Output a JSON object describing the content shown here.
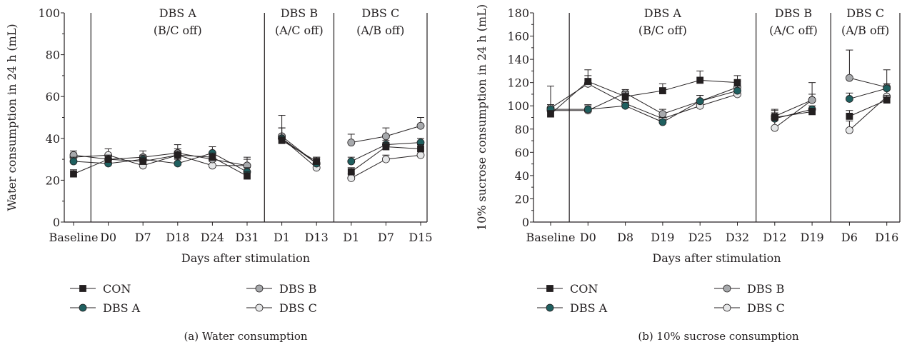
{
  "legend_labels": [
    "CON",
    "DBS A",
    "DBS B",
    "DBS C"
  ],
  "series_colors": {
    "CON": "#231f20",
    "DBS A": "#1f5f5f",
    "DBS B": "#a7a9ac",
    "DBS C": "#e6e7e8"
  },
  "markers": {
    "CON": "square",
    "DBS A": "circle",
    "DBS B": "circle",
    "DBS C": "circle"
  },
  "chart_data": [
    {
      "type": "line",
      "caption": "(a)  Water consumption",
      "xlabel": "Days after stimulation",
      "ylabel": "Water consumption in 24 h (mL)",
      "ylim": [
        0,
        100
      ],
      "yticks": [
        0,
        20,
        40,
        60,
        80,
        100
      ],
      "categories": [
        "Baseline",
        "D0",
        "D7",
        "D18",
        "D24",
        "D31",
        "D1",
        "D13",
        "D1",
        "D7",
        "D15"
      ],
      "phases": [
        {
          "line1": "DBS A",
          "line2": "(B/C off)",
          "from_index": 1,
          "to_index": 5
        },
        {
          "line1": "DBS B",
          "line2": "(A/C off)",
          "from_index": 6,
          "to_index": 7
        },
        {
          "line1": "DBS C",
          "line2": "(A/B off)",
          "from_index": 8,
          "to_index": 10
        }
      ],
      "series": [
        {
          "name": "CON",
          "values": [
            23,
            30,
            29,
            32,
            31,
            22,
            39,
            29,
            24,
            36,
            35
          ],
          "errors": [
            2,
            2,
            2,
            2,
            2,
            2,
            2,
            2,
            2,
            2,
            2
          ]
        },
        {
          "name": "DBS A",
          "values": [
            29,
            28,
            30,
            28,
            33,
            24,
            40,
            28,
            29,
            37,
            38
          ],
          "errors": [
            2,
            2,
            2,
            2,
            3,
            2,
            5,
            2,
            2,
            2,
            2
          ]
        },
        {
          "name": "DBS B",
          "values": [
            32,
            30,
            31,
            33,
            30,
            27,
            41,
            28,
            38,
            41,
            46
          ],
          "errors": [
            2,
            2,
            3,
            4,
            3,
            4,
            10,
            3,
            4,
            4,
            4
          ]
        },
        {
          "name": "DBS C",
          "values": [
            31,
            32,
            27,
            32,
            27,
            27,
            40,
            26,
            21,
            30,
            32
          ],
          "errors": [
            2,
            3,
            2,
            3,
            2,
            3,
            5,
            2,
            2,
            2,
            2
          ]
        }
      ]
    },
    {
      "type": "line",
      "caption": "(b)  10% sucrose consumption",
      "xlabel": "Days after stimulation",
      "ylabel": "10% sucrose consumption in 24 h (mL)",
      "ylim": [
        0,
        180
      ],
      "yticks": [
        0,
        20,
        40,
        60,
        80,
        100,
        120,
        140,
        160,
        180
      ],
      "categories": [
        "Baseline",
        "D0",
        "D8",
        "D19",
        "D25",
        "D32",
        "D12",
        "D19",
        "D6",
        "D16"
      ],
      "phases": [
        {
          "line1": "DBS A",
          "line2": "(B/C off)",
          "from_index": 1,
          "to_index": 5
        },
        {
          "line1": "DBS B",
          "line2": "(A/C off)",
          "from_index": 6,
          "to_index": 7
        },
        {
          "line1": "DBS C",
          "line2": "(A/B off)",
          "from_index": 8,
          "to_index": 9
        }
      ],
      "series": [
        {
          "name": "CON",
          "values": [
            93,
            121,
            108,
            113,
            122,
            120,
            90,
            95,
            91,
            105
          ],
          "errors": [
            3,
            5,
            4,
            6,
            8,
            6,
            4,
            3,
            5,
            4
          ]
        },
        {
          "name": "DBS A",
          "values": [
            97,
            97,
            100,
            86,
            104,
            113,
            89,
            97,
            106,
            115
          ],
          "errors": [
            4,
            4,
            3,
            4,
            5,
            4,
            4,
            3,
            5,
            4
          ]
        },
        {
          "name": "DBS B",
          "values": [
            96,
            96,
            111,
            93,
            104,
            116,
            91,
            105,
            124,
            116
          ],
          "errors": [
            5,
            4,
            3,
            4,
            5,
            5,
            5,
            15,
            24,
            15
          ]
        },
        {
          "name": "DBS C",
          "values": [
            98,
            119,
            102,
            89,
            100,
            110,
            81,
            105,
            79,
            108
          ],
          "errors": [
            19,
            12,
            3,
            4,
            4,
            5,
            16,
            5,
            8,
            6
          ]
        }
      ]
    }
  ]
}
